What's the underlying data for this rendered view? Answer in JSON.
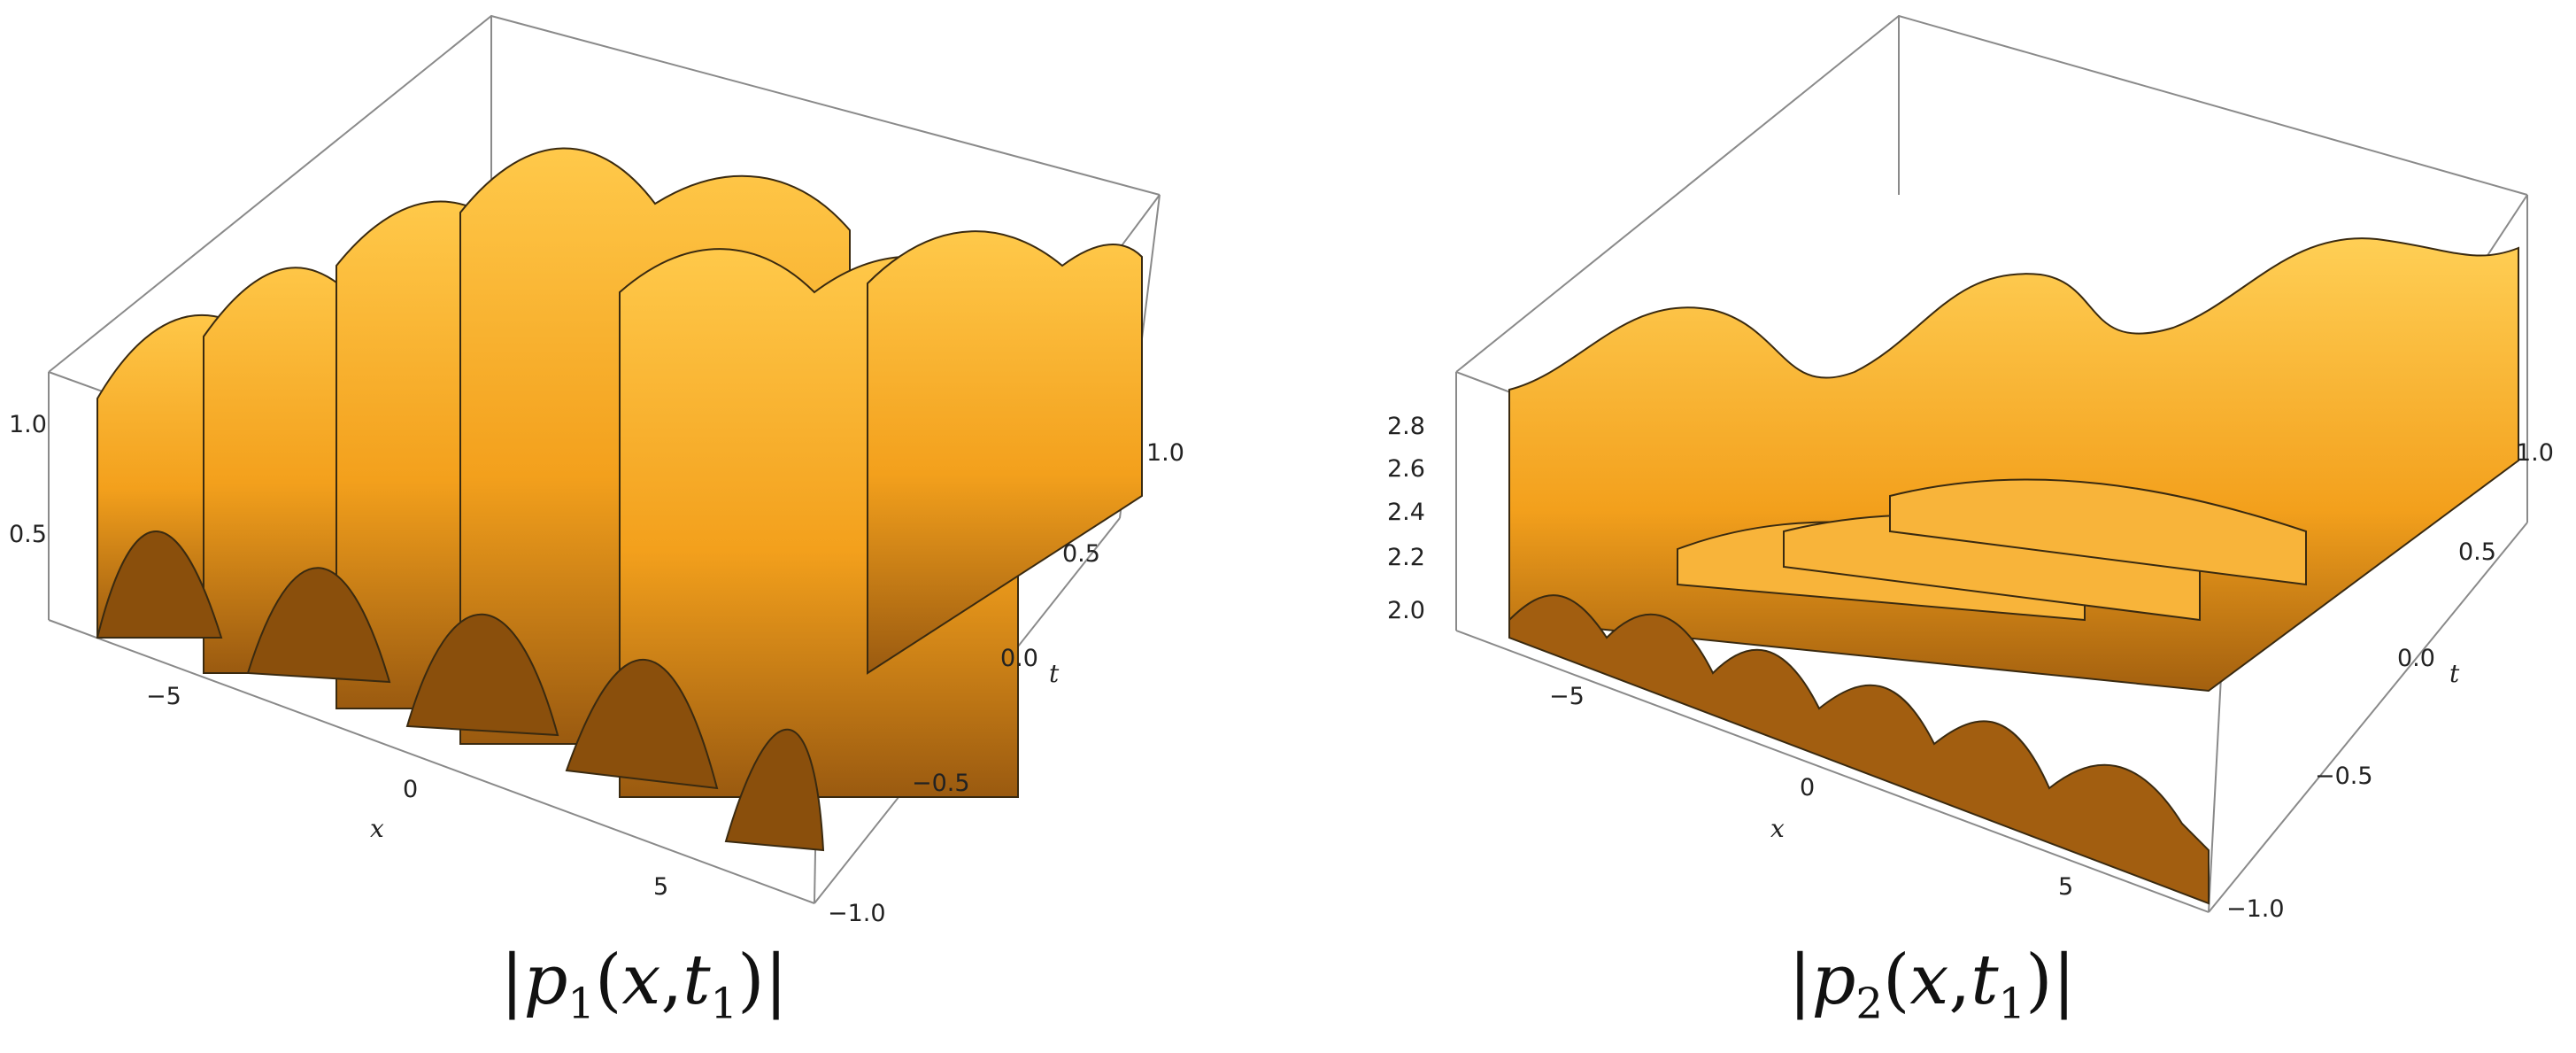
{
  "panels": [
    {
      "id": "p1",
      "caption": {
        "bar_left": "|",
        "func": "p",
        "func_sub": "1",
        "open": "(",
        "var_x": "x",
        "comma": ",",
        "var_t": "t",
        "var_t_sub": "1",
        "close": ")",
        "bar_right": "|"
      },
      "z_ticks": [
        "1.0",
        "0.5"
      ],
      "x_ticks": [
        "−5",
        "0",
        "5"
      ],
      "t_ticks": [
        "1.0",
        "0.5",
        "0.0",
        "−0.5",
        "−1.0"
      ],
      "x_label": "x",
      "t_label": "t",
      "surface_color": "#f5a623"
    },
    {
      "id": "p2",
      "caption": {
        "bar_left": "|",
        "func": "p",
        "func_sub": "2",
        "open": "(",
        "var_x": "x",
        "comma": ",",
        "var_t": "t",
        "var_t_sub": "1",
        "close": ")",
        "bar_right": "|"
      },
      "z_ticks": [
        "2.8",
        "2.6",
        "2.4",
        "2.2",
        "2.0"
      ],
      "x_ticks": [
        "−5",
        "0",
        "5"
      ],
      "t_ticks": [
        "1.0",
        "0.5",
        "0.0",
        "−0.5",
        "−1.0"
      ],
      "x_label": "x",
      "t_label": "t",
      "surface_color": "#f5a623"
    }
  ]
}
